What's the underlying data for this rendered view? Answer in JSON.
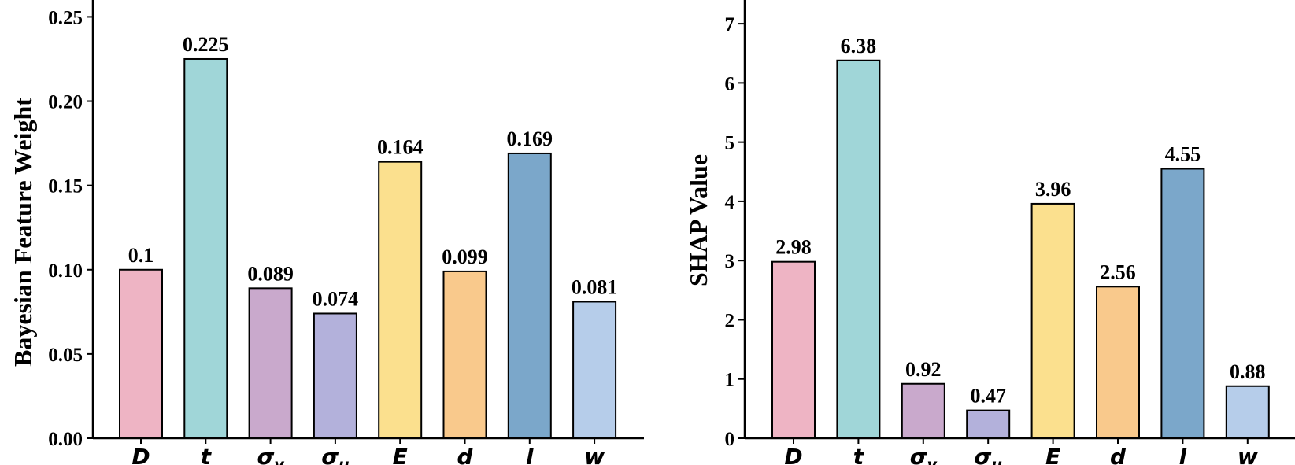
{
  "chart_data": [
    {
      "type": "bar",
      "title": "",
      "xlabel": "",
      "ylabel": "Bayesian Feature Weight",
      "ylim": [
        0,
        0.26
      ],
      "yticks": [
        "0.00",
        "0.05",
        "0.10",
        "0.15",
        "0.20",
        "0.25"
      ],
      "ytick_values": [
        0,
        0.05,
        0.1,
        0.15,
        0.2,
        0.25
      ],
      "categories": [
        {
          "main": "D",
          "sub": ""
        },
        {
          "main": "t",
          "sub": ""
        },
        {
          "main": "σ",
          "sub": "y"
        },
        {
          "main": "σ",
          "sub": "u"
        },
        {
          "main": "E",
          "sub": ""
        },
        {
          "main": "d",
          "sub": ""
        },
        {
          "main": "l",
          "sub": ""
        },
        {
          "main": "w",
          "sub": ""
        }
      ],
      "values": [
        0.1,
        0.225,
        0.089,
        0.074,
        0.164,
        0.099,
        0.169,
        0.081
      ],
      "value_labels": [
        "0.1",
        "0.225",
        "0.089",
        "0.074",
        "0.164",
        "0.099",
        "0.169",
        "0.081"
      ],
      "colors": [
        "#EEB4C4",
        "#A0D6D8",
        "#C9A9CC",
        "#B3B1DB",
        "#FBE08E",
        "#F9C98C",
        "#7BA7CA",
        "#B6CDEA"
      ]
    },
    {
      "type": "bar",
      "title": "",
      "xlabel": "",
      "ylabel": "SHAP Value",
      "ylim": [
        0,
        7.4
      ],
      "yticks": [
        "0",
        "1",
        "2",
        "3",
        "4",
        "5",
        "6",
        "7"
      ],
      "ytick_values": [
        0,
        1,
        2,
        3,
        4,
        5,
        6,
        7
      ],
      "categories": [
        {
          "main": "D",
          "sub": ""
        },
        {
          "main": "t",
          "sub": ""
        },
        {
          "main": "σ",
          "sub": "y"
        },
        {
          "main": "σ",
          "sub": "u"
        },
        {
          "main": "E",
          "sub": ""
        },
        {
          "main": "d",
          "sub": ""
        },
        {
          "main": "l",
          "sub": ""
        },
        {
          "main": "w",
          "sub": ""
        }
      ],
      "values": [
        2.98,
        6.38,
        0.92,
        0.47,
        3.96,
        2.56,
        4.55,
        0.88
      ],
      "value_labels": [
        "2.98",
        "6.38",
        "0.92",
        "0.47",
        "3.96",
        "2.56",
        "4.55",
        "0.88"
      ],
      "colors": [
        "#EEB4C4",
        "#A0D6D8",
        "#C9A9CC",
        "#B3B1DB",
        "#FBE08E",
        "#F9C98C",
        "#7BA7CA",
        "#B6CDEA"
      ]
    }
  ]
}
